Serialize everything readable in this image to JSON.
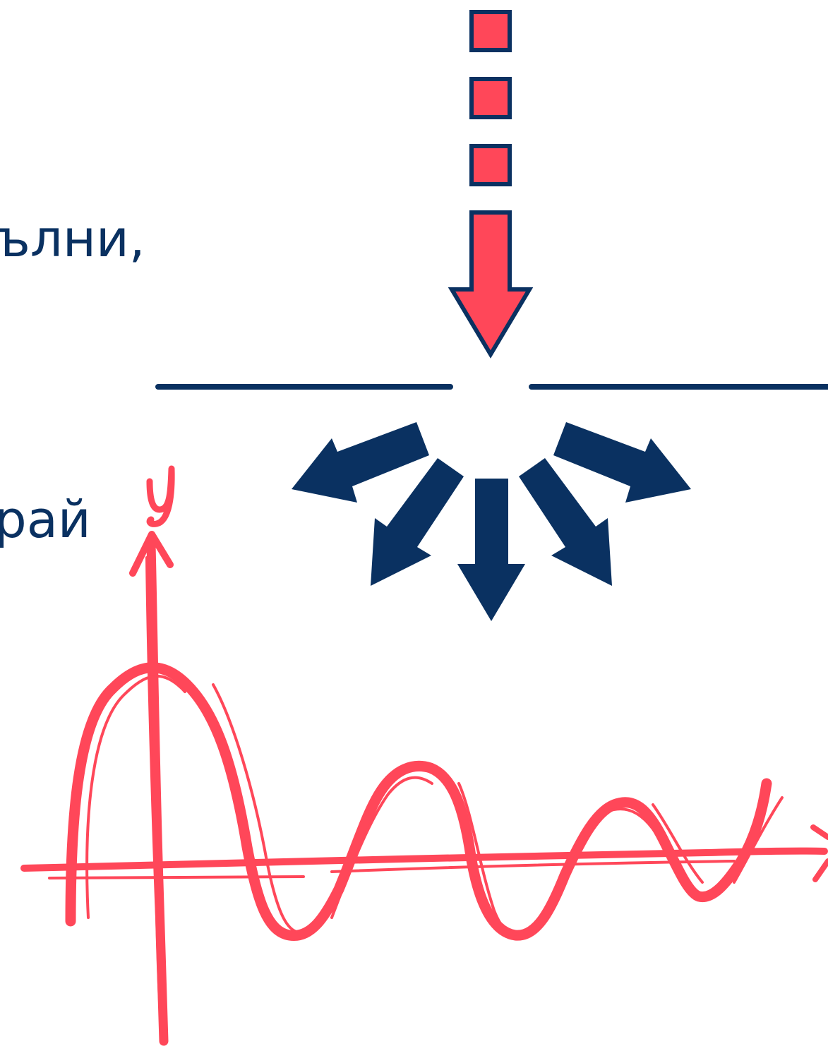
{
  "text_fragments": [
    "ълни,",
    "рай"
  ],
  "axis_label_y": "y",
  "axis_label_x": "x",
  "colors": {
    "navy": "#0a3161",
    "red": "#ff4759"
  },
  "icons": [
    "incoming-arrow-icon",
    "diffraction-arrows-icon",
    "damped-wave-graph"
  ]
}
